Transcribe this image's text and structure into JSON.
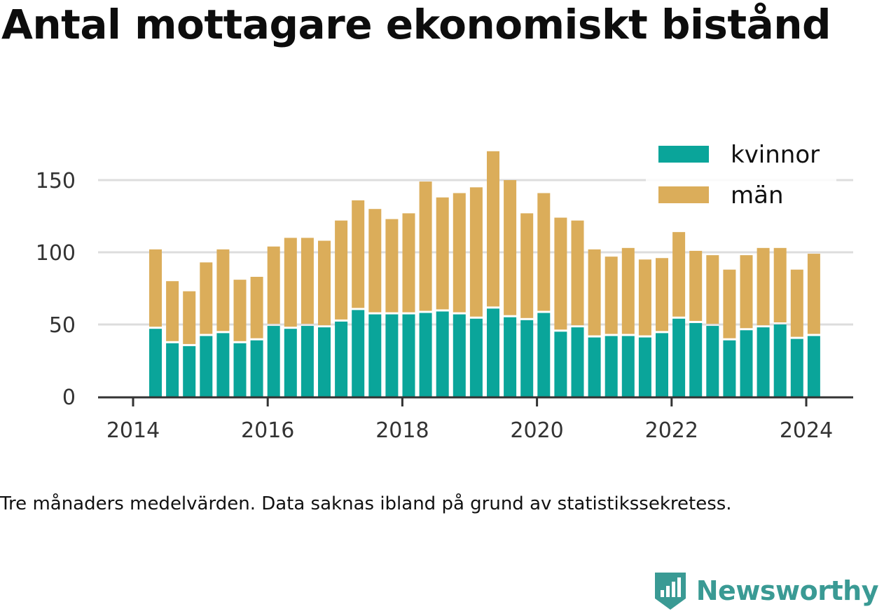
{
  "title": "Antal mottagare ekonomiskt bistånd",
  "footnote": "Tre månaders medelvärden. Data saknas ibland på grund av statistikssekretess.",
  "brand": "Newsworthy",
  "colors": {
    "kvinnor": "#0aa59a",
    "man": "#dbad5a",
    "grid": "#dddddd",
    "axis": "#333333",
    "brand": "#3a9a94"
  },
  "chart_data": {
    "type": "bar",
    "stacked": true,
    "x_ticks": [
      "2014",
      "2016",
      "2018",
      "2020",
      "2022",
      "2024"
    ],
    "y_ticks": [
      "0",
      "50",
      "100",
      "150"
    ],
    "ylim": [
      0,
      175
    ],
    "legend_position": "top-right",
    "categories": [
      "2014-05",
      "2014-08",
      "2014-11",
      "2015-02",
      "2015-05",
      "2015-08",
      "2015-11",
      "2016-02",
      "2016-05",
      "2016-08",
      "2016-11",
      "2017-02",
      "2017-05",
      "2017-08",
      "2017-11",
      "2018-02",
      "2018-05",
      "2018-08",
      "2018-11",
      "2019-02",
      "2019-05",
      "2019-08",
      "2019-11",
      "2020-02",
      "2020-05",
      "2020-08",
      "2020-11",
      "2021-02",
      "2021-05",
      "2021-08",
      "2021-11",
      "2022-02",
      "2022-05",
      "2022-08",
      "2022-11",
      "2023-02",
      "2023-05",
      "2023-08",
      "2023-11",
      "2024-02"
    ],
    "series": [
      {
        "name": "kvinnor",
        "values": [
          47,
          37,
          35,
          42,
          44,
          37,
          39,
          49,
          47,
          49,
          48,
          52,
          60,
          57,
          57,
          57,
          58,
          59,
          57,
          54,
          61,
          55,
          53,
          58,
          45,
          48,
          41,
          42,
          42,
          41,
          44,
          54,
          51,
          49,
          39,
          46,
          48,
          50,
          40,
          42
        ]
      },
      {
        "name": "män",
        "values": [
          55,
          43,
          38,
          51,
          58,
          44,
          44,
          55,
          63,
          61,
          60,
          70,
          76,
          73,
          66,
          70,
          91,
          79,
          84,
          91,
          109,
          95,
          74,
          83,
          79,
          74,
          61,
          55,
          61,
          54,
          52,
          60,
          50,
          49,
          49,
          52,
          55,
          53,
          48,
          57
        ]
      }
    ]
  }
}
